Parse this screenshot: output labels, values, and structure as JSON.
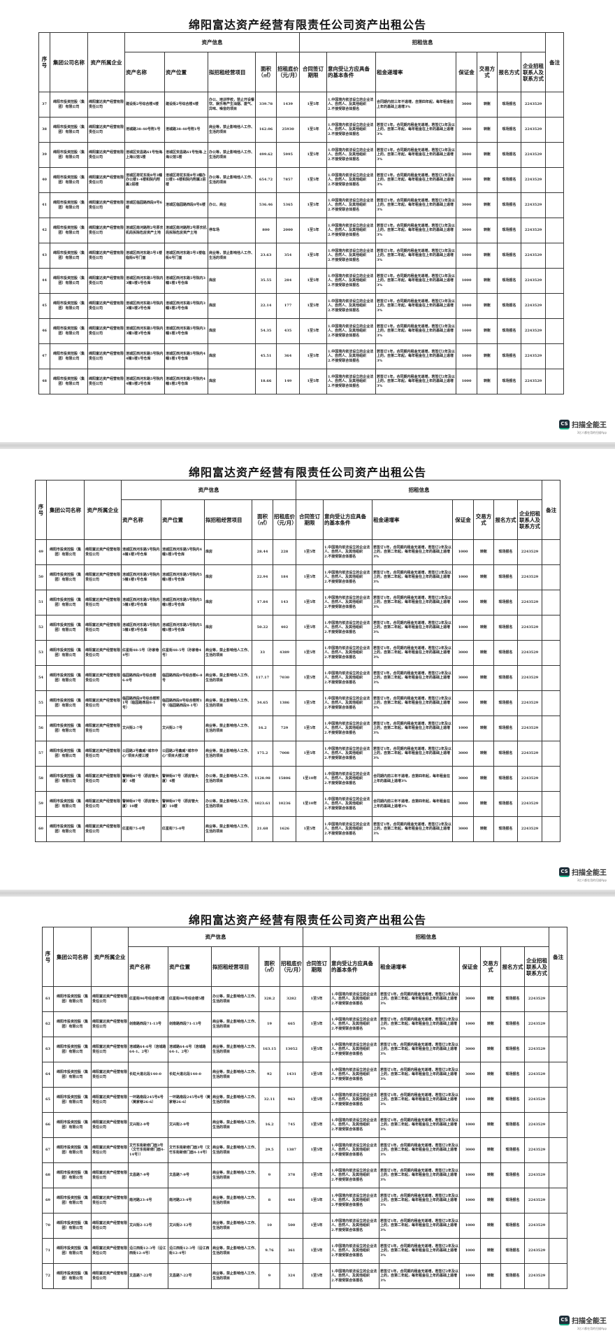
{
  "document_title": "绵阳富达资产经营有限责任公司资产出租公告",
  "headers": {
    "group_asset": "资产信息",
    "group_lease": "招租信息",
    "columns": [
      "序号",
      "集团公司名称",
      "资产所属企业",
      "资产名称",
      "资产位置",
      "拟招租经营项目",
      "面积（㎡）",
      "招租底价（元/月）",
      "合同签订期限",
      "意向受让方应具备的基本条件",
      "租金递增率",
      "保证金",
      "交易方式",
      "报名方式",
      "企业招租联系人及联系方式",
      "备注"
    ]
  },
  "common": {
    "group_company": "绵阳市投资控股（集团）有限公司",
    "owner_company": "绵阳富达资产经营有限责任公司",
    "conditions": "1.中国境内依法设立的企业法人、自然人、及其他组织\n2.不接受联合体报名",
    "trade_method": "转账",
    "signup_method": "现场报名",
    "contact": "2243529",
    "remark": ""
  },
  "watermark": {
    "name": "扫描全能王",
    "badge": "CS",
    "tagline": "3亿人都在用的扫描App"
  },
  "pages": [
    {
      "rows": [
        {
          "no": "37",
          "name": "建设街2号综合楼4楼",
          "location": "建设街2号综合楼4楼",
          "use": "办公、培训学校，禁止开设餐饮、娱乐等产生油烟、废气、异味、噪音的项目",
          "area": "339.78",
          "price": "1439",
          "term": "1至5年",
          "increase": "合同期内前三年不递增，自第四年起，每年租金在上年的基础上递增3%",
          "deposit": "3000"
        },
        {
          "no": "38",
          "name": "涪城路38-40号附1号",
          "location": "涪城路38-40号附1号",
          "use": "商业等，禁止影响他人工作、生活的项目",
          "area": "162.06",
          "price": "25930",
          "term": "1至5年",
          "increase": "若签订1年，合同期内租金无递增，若签订2年及以上的，自第二年起，每年租金在上年的基础上递增3%",
          "deposit": "3000"
        },
        {
          "no": "39",
          "name": "涪城区安昌路61号怡海.上海公馆5楼",
          "location": "涪城区安昌路61号怡海.上海公馆5楼",
          "use": "办公等，禁止影响他人工作、生活的项目",
          "area": "499.62",
          "price": "5995",
          "term": "1至5年",
          "increase": "若签订1年，合同期内租金无递增，若签订2年及以上的，自第二年起，每年租金在上年的基础上递增3%",
          "deposit": "3000"
        },
        {
          "no": "40",
          "name": "涪城区荷花东街8号3幢办公楼1-4楼和院内附属2层楼",
          "location": "涪城区荷花东街8号3幢办公楼1-4楼和院内附属2层楼",
          "use": "办公等，禁止影响他人工作、生活的项目",
          "area": "654.72",
          "price": "7857",
          "term": "1至5年",
          "increase": "若签订1年，合同期内租金无递增，若签订2年及以上的，自第二年起，每年租金在上年的基础上递增3%",
          "deposit": "3000"
        },
        {
          "no": "41",
          "name": "涪城区临园路西段8号6楼",
          "location": "涪城区临园路西段8号6楼",
          "use": "办公、商业",
          "area": "536.46",
          "price": "5365",
          "term": "1至5年",
          "increase": "若签订1年，合同期内租金无递增，若签订2年及以上的，自第二年起，每年租金在上年的基础上递增3%",
          "deposit": "3000"
        },
        {
          "no": "42",
          "name": "涪城区南河路附2号原农机局拆除危房资产土地",
          "location": "涪城区南河路附2号原农机局拆除危房资产土地",
          "use": "停车场",
          "area": "800",
          "price": "2000",
          "term": "1至5年",
          "increase": "若签订1年，合同期内租金无递增，若签订2年及以上的，自第二年起，每年租金在上年的基础上递增3%",
          "deposit": "3000"
        },
        {
          "no": "43",
          "name": "涪城区西河东路5号1楼临街6号门面",
          "location": "涪城区西河东路5号1楼临街6号门面",
          "use": "商业等，禁止影响他人工作、生活的项目",
          "area": "23.63",
          "price": "354",
          "term": "1至5年",
          "increase": "若签订1年，合同期内租金无递增，若签订2年及以上的，自第二年起，每年租金在上年的基础上递增3%",
          "deposit": "1000"
        },
        {
          "no": "44",
          "name": "涪城区西河东路5号院内3幢1楼1号仓库",
          "location": "涪城区西河东路5号院内3幢1楼1号仓库",
          "use": "库房",
          "area": "35.55",
          "price": "284",
          "term": "1至5年",
          "increase": "若签订1年，合同期内租金无递增，若签订2年及以上的，自第二年起，每年租金在上年的基础上递增3%",
          "deposit": "1000"
        },
        {
          "no": "45",
          "name": "涪城区西河东路5号院内3幢1楼2号仓库",
          "location": "涪城区西河东路5号院内3幢1楼2号仓库",
          "use": "库房",
          "area": "22.14",
          "price": "177",
          "term": "1至5年",
          "increase": "若签订1年，合同期内租金无递增，若签订2年及以上的，自第二年起，每年租金在上年的基础上递增3%",
          "deposit": "1000"
        },
        {
          "no": "46",
          "name": "涪城区西河东路5号院内3幢1楼3号仓库",
          "location": "涪城区西河东路5号院内3幢1楼3号仓库",
          "use": "库房",
          "area": "54.35",
          "price": "435",
          "term": "1至5年",
          "increase": "若签订1年，合同期内租金无递增，若签订2年及以上的，自第二年起，每年租金在上年的基础上递增3%",
          "deposit": "1000"
        },
        {
          "no": "47",
          "name": "涪城区西河东路5号院内4幢1楼1号仓库",
          "location": "涪城区西河东路5号院内4幢1楼1号仓库",
          "use": "库房",
          "area": "45.51",
          "price": "364",
          "term": "1至5年",
          "increase": "若签订1年，合同期内租金无递增，若签订2年及以上的，自第二年起，每年租金在上年的基础上递增3%",
          "deposit": "1000"
        },
        {
          "no": "48",
          "name": "涪城区西河东路5号院内4幢1楼2号仓库",
          "location": "涪城区西河东路5号院内4幢1楼2号仓库",
          "use": "库房",
          "area": "18.66",
          "price": "149",
          "term": "1至5年",
          "increase": "若签订1年，合同期内租金无递增，若签订2年及以上的，自第二年起，每年租金在上年的基础上递增3%",
          "deposit": "1000"
        }
      ]
    },
    {
      "rows": [
        {
          "no": "49",
          "name": "涪城区西河东路5号院内4幢1楼3号仓库",
          "location": "涪城区西河东路5号院内4幢1楼3号仓库",
          "use": "库房",
          "area": "28.44",
          "price": "228",
          "term": "1至5年",
          "increase": "若签订1年，合同期内租金无递增，若签订2年及以上的，自第二年起，每年租金在上年的基础上递增3%",
          "deposit": "1000"
        },
        {
          "no": "50",
          "name": "涪城区西河东路5号院内5幢1楼1号仓库",
          "location": "涪城区西河东路5号院内5幢1楼1号仓库",
          "use": "库房",
          "area": "22.94",
          "price": "184",
          "term": "1至5年",
          "increase": "若签订1年，合同期内租金无递增，若签订2年及以上的，自第二年起，每年租金在上年的基础上递增3%",
          "deposit": "1000"
        },
        {
          "no": "51",
          "name": "涪城区西河东路5号院内5幢1楼2号仓库",
          "location": "涪城区西河东路5号院内5幢1楼2号仓库",
          "use": "库房",
          "area": "17.84",
          "price": "143",
          "term": "1至5年",
          "increase": "若签订1年，合同期内租金无递增，若签订2年及以上的，自第二年起，每年租金在上年的基础上递增3%",
          "deposit": "1000"
        },
        {
          "no": "52",
          "name": "涪城区西河东路5号院内5幢1楼3号仓库",
          "location": "涪城区西河东路5号院内5幢1楼3号仓库",
          "use": "库房",
          "area": "50.22",
          "price": "402",
          "term": "1至5年",
          "increase": "若签订1年，合同期内租金无递增，若签订2年及以上的，自第二年起，每年租金在上年的基础上递增3%",
          "deposit": "1000"
        },
        {
          "no": "53",
          "name": "红星街48-5号（孙家巷4号）",
          "location": "红星街48-5号（孙家巷4号）",
          "use": "商业等，禁止影响他人工作、生活的项目",
          "area": "33",
          "price": "4389",
          "term": "1至5年",
          "increase": "若签订1年，合同期内租金无递增，若签订2年及以上的，自第二年起，每年租金在上年的基础上递增3%",
          "deposit": "3000"
        },
        {
          "no": "54",
          "name": "临园路西段8号综合楼6-8号",
          "location": "临园路西段8号综合楼6-8号",
          "use": "商业等，禁止影响他人工作、生活的项目",
          "area": "117.17",
          "price": "7030",
          "term": "1至5年",
          "increase": "若签订1年，合同期内租金无递增，若签订2年及以上的，自第二年起，每年租金在上年的基础上递增3%",
          "deposit": "3000"
        },
        {
          "no": "55",
          "name": "临园路西段8号综合楼附1号（临园路西段8-1号）",
          "location": "临园路西段8号综合楼附1号（临园路西段8-1号）",
          "use": "商业等，禁止影响他人工作、生活的项目",
          "area": "34.65",
          "price": "1386",
          "term": "1至5年",
          "increase": "若签订1年，合同期内租金无递增，若签订2年及以上的，自第二年起，每年租金在上年的基础上递增3%",
          "deposit": "3000"
        },
        {
          "no": "56",
          "name": "文兴街2-7号",
          "location": "文兴街2-7号",
          "use": "商业等，禁止影响他人工作、生活的项目",
          "area": "16.2",
          "price": "729",
          "term": "1至5年",
          "increase": "若签订1年，合同期内租金无递增，若签订2年及以上的，自第二年起，每年租金在上年的基础上递增3%",
          "deposit": "1000"
        },
        {
          "no": "57",
          "name": "公园路2号鑫威“城市中心”项目大楼三楼",
          "location": "公园路2号鑫威“城市中心”项目大楼三楼",
          "use": "商业等，禁止影响他人工作、生活的项目",
          "area": "175.2",
          "price": "7008",
          "term": "1至5年",
          "increase": "若签订1年，合同期内租金无递增，若签订2年及以上的，自第二年起，每年租金在上年的基础上递增3%",
          "deposit": "3000"
        },
        {
          "no": "58",
          "name": "警钟街87号（原房管大厦）4楼",
          "location": "警钟街87号（原房管大厦）4楼",
          "use": "办公等，禁止影响他人工作、生活的项目",
          "area": "1128.98",
          "price": "15806",
          "term": "1至10年",
          "increase": "合同期内前三年不递增，自第四年起，每年租金在上年的基础上递增3%",
          "deposit": "3000"
        },
        {
          "no": "59",
          "name": "警钟街87号（原房管大厦）10楼",
          "location": "警钟街87号（原房管大厦）10楼",
          "use": "办公等，禁止影响他人工作、生活的项目",
          "area": "1023.61",
          "price": "10236",
          "term": "1至10年",
          "increase": "合同期内前三年不递增，自第四年起，每年租金在上年的基础上递增3%",
          "deposit": "3000"
        },
        {
          "no": "60",
          "name": "红星街75-0号",
          "location": "红星街75-0号",
          "use": "商业等，禁止影响他人工作、生活的项目",
          "area": "21.68",
          "price": "1626",
          "term": "1至5年",
          "increase": "若签订1年，合同期内租金无递增，若签订2年及以上的，自第二年起，每年租金在上年的基础上递增3%",
          "deposit": "3000"
        }
      ]
    },
    {
      "rows": [
        {
          "no": "61",
          "name": "红星街96号综合楼5楼",
          "location": "红星街96号综合楼5楼",
          "use": "办公等，禁止影响他人工作、生活的项目",
          "area": "328.2",
          "price": "3282",
          "term": "1至5年",
          "increase": "若签订1年，合同期内租金无递增，若签订2年及以上的，自第二年起，每年租金在上年的基础上递增3%",
          "deposit": "3000"
        },
        {
          "no": "62",
          "name": "剑南路西段71-13号",
          "location": "剑南路西段71-13号",
          "use": "商业等，禁止影响他人工作、生活的项目",
          "area": "19",
          "price": "665",
          "term": "1至5年",
          "increase": "若签订1年，合同期内租金无递增，若签订2年及以上的，自第二年起，每年租金在上年的基础上递增3%",
          "deposit": "1000"
        },
        {
          "no": "63",
          "name": "涪城路64-6号（涪城路64-1、2号）",
          "location": "涪城路64-6号（涪城路64-1、2号）",
          "use": "商业等，禁止影响他人工作、生活的项目",
          "area": "163.15",
          "price": "13052",
          "term": "1至5年",
          "increase": "若签订1年，合同期内租金无递增，若签订2年及以上的，自第二年起，每年租金在上年的基础上递增3%",
          "deposit": "3000"
        },
        {
          "no": "64",
          "name": "长虹大道北段140-0",
          "location": "长虹大道北段140-0",
          "use": "商业等，禁止影响他人工作、生活的项目",
          "area": "92",
          "price": "1431",
          "term": "1至5年",
          "increase": "若签订1年，合同期内租金无递增，若签订2年及以上的，自第二年起，每年租金在上年的基础上递增3%",
          "deposit": "3000"
        },
        {
          "no": "65",
          "name": "一环路南段245号6号（黄家巷26-6）",
          "location": "一环路南段245号6号（黄家巷26-6）",
          "use": "商业等，禁止影响他人工作、生活的项目",
          "area": "32.11",
          "price": "963",
          "term": "1至5年",
          "increase": "若签订1年，合同期内租金无递增，若签订2年及以上的，自第二年起，每年租金在上年的基础上递增3%",
          "deposit": "1000"
        },
        {
          "no": "66",
          "name": "文兴街2-9号",
          "location": "文兴街2-9号",
          "use": "商业等，禁止影响他人工作、生活的项目",
          "area": "16.2",
          "price": "745",
          "term": "1至5年",
          "increase": "若签订1年，合同期内租金无递增，若签订2年及以上的，自第二年起，每年租金在上年的基础上递增3%",
          "deposit": "1000"
        },
        {
          "no": "67",
          "name": "文竹东街新修门面3号（文竹东街新修门面4-14号））",
          "location": "文竹东街新修门面3号（文竹东街新修门面4-14号）",
          "use": "商业等，禁止影响他人工作、生活的项目",
          "area": "29.5",
          "price": "1387",
          "term": "1至5年",
          "increase": "若签订1年，合同期内租金无递增，若签订2年及以上的，自第二年起，每年租金在上年的基础上递增3%",
          "deposit": "3000"
        },
        {
          "no": "68",
          "name": "文昌路7-9号",
          "location": "文昌路7-9号",
          "use": "商业等，禁止影响他人工作、生活的项目",
          "area": "9",
          "price": "378",
          "term": "1至5年",
          "increase": "若签订1年，合同期内租金无递增，若签订2年及以上的，自第二年起，每年租金在上年的基础上递增3%",
          "deposit": "1000"
        },
        {
          "no": "69",
          "name": "南河路23-4号",
          "location": "南河路23-4号",
          "use": "商业等，禁止影响他人工作、生活的项目",
          "area": "8",
          "price": "464",
          "term": "1至5年",
          "increase": "若签订1年，合同期内租金无递增，若签订2年及以上的，自第二年起，每年租金在上年的基础上递增3%",
          "deposit": "1000"
        },
        {
          "no": "70",
          "name": "文兴街2-12号",
          "location": "文兴街2-12号",
          "use": "商业等，禁止影响他人工作、生活的项目",
          "area": "10",
          "price": "500",
          "term": "1至5年",
          "increase": "若签订1年，合同期内租金无递增，若签订2年及以上的，自第二年起，每年租金在上年的基础上递增3%",
          "deposit": "1000"
        },
        {
          "no": "71",
          "name": "沿江西街12-3号（沿江西街12-4号）",
          "location": "沿江西街12-3号（沿江西街12-4号）",
          "use": "商业等，禁止影响他人工作、生活的项目",
          "area": "9.76",
          "price": "361",
          "term": "1至5年",
          "increase": "若签订1年，合同期内租金无递增，若签订2年及以上的，自第二年起，每年租金在上年的基础上递增3%",
          "deposit": "1000"
        },
        {
          "no": "72",
          "name": "文昌路7-22号",
          "location": "文昌路7-22号",
          "use": "商业等，禁止影响他人工作、生活的项目",
          "area": "9",
          "price": "324",
          "term": "1至5年",
          "increase": "若签订1年，合同期内租金无递增，若签订2年及以上的，自第二年起，每年租金在上年的基础上递增3%",
          "deposit": "1000"
        }
      ]
    }
  ]
}
